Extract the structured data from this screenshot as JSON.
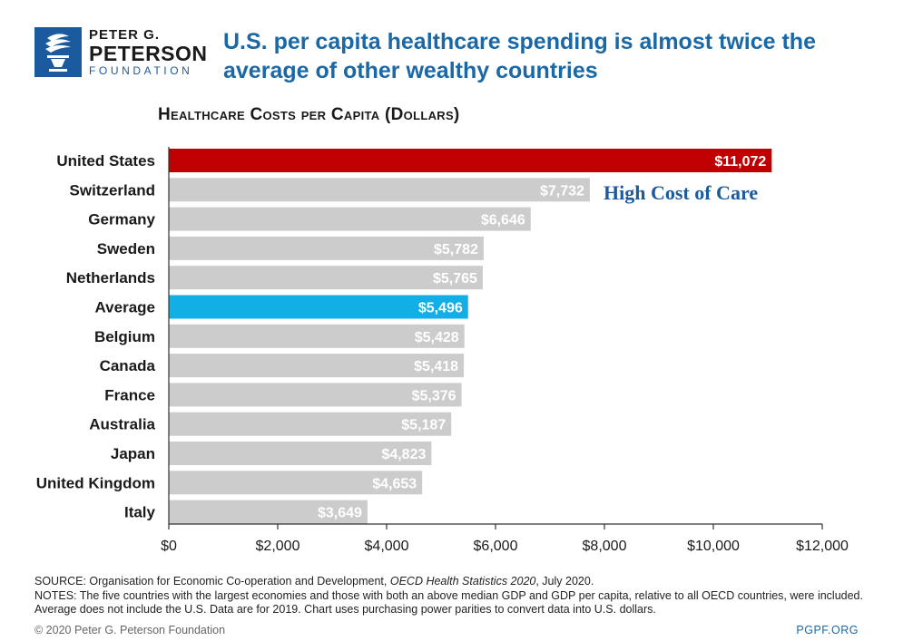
{
  "logo": {
    "line1": "PETER G.",
    "line2": "PETERSON",
    "line3": "FOUNDATION",
    "brand_color": "#1b5a9e"
  },
  "headline": "U.S. per capita healthcare spending is almost twice the average of other wealthy countries",
  "annotation": "High Cost of Care",
  "chart_data": {
    "type": "bar",
    "orientation": "horizontal",
    "title": "Healthcare Costs per Capita (Dollars)",
    "categories": [
      "United States",
      "Switzerland",
      "Germany",
      "Sweden",
      "Netherlands",
      "Average",
      "Belgium",
      "Canada",
      "France",
      "Australia",
      "Japan",
      "United Kingdom",
      "Italy"
    ],
    "values": [
      11072,
      7732,
      6646,
      5782,
      5765,
      5496,
      5428,
      5418,
      5376,
      5187,
      4823,
      4653,
      3649
    ],
    "value_labels": [
      "$11,072",
      "$7,732",
      "$6,646",
      "$5,782",
      "$5,765",
      "$5,496",
      "$5,428",
      "$5,418",
      "$5,376",
      "$5,187",
      "$4,823",
      "$4,653",
      "$3,649"
    ],
    "bar_colors": [
      "#c00000",
      "#cccccc",
      "#cccccc",
      "#cccccc",
      "#cccccc",
      "#12aee6",
      "#cccccc",
      "#cccccc",
      "#cccccc",
      "#cccccc",
      "#cccccc",
      "#cccccc",
      "#cccccc"
    ],
    "xlim": [
      0,
      12000
    ],
    "x_ticks": [
      0,
      2000,
      4000,
      6000,
      8000,
      10000,
      12000
    ],
    "x_tick_labels": [
      "$0",
      "$2,000",
      "$4,000",
      "$6,000",
      "$8,000",
      "$10,000",
      "$12,000"
    ],
    "grid": false,
    "legend": "none"
  },
  "notes": {
    "source_prefix": "SOURCE: Organisation for Economic Co-operation and Development, ",
    "source_italic": "OECD Health Statistics 2020",
    "source_suffix": ", July 2020.",
    "notes_text": "NOTES: The five countries with the largest economies and those with both an above median GDP and GDP per capita, relative to all OECD countries, were included. Average does not include the U.S. Data are for 2019. Chart uses purchasing power parities to convert data into U.S. dollars."
  },
  "footer": {
    "copyright": "© 2020 Peter G. Peterson Foundation",
    "site": "PGPF.ORG"
  }
}
